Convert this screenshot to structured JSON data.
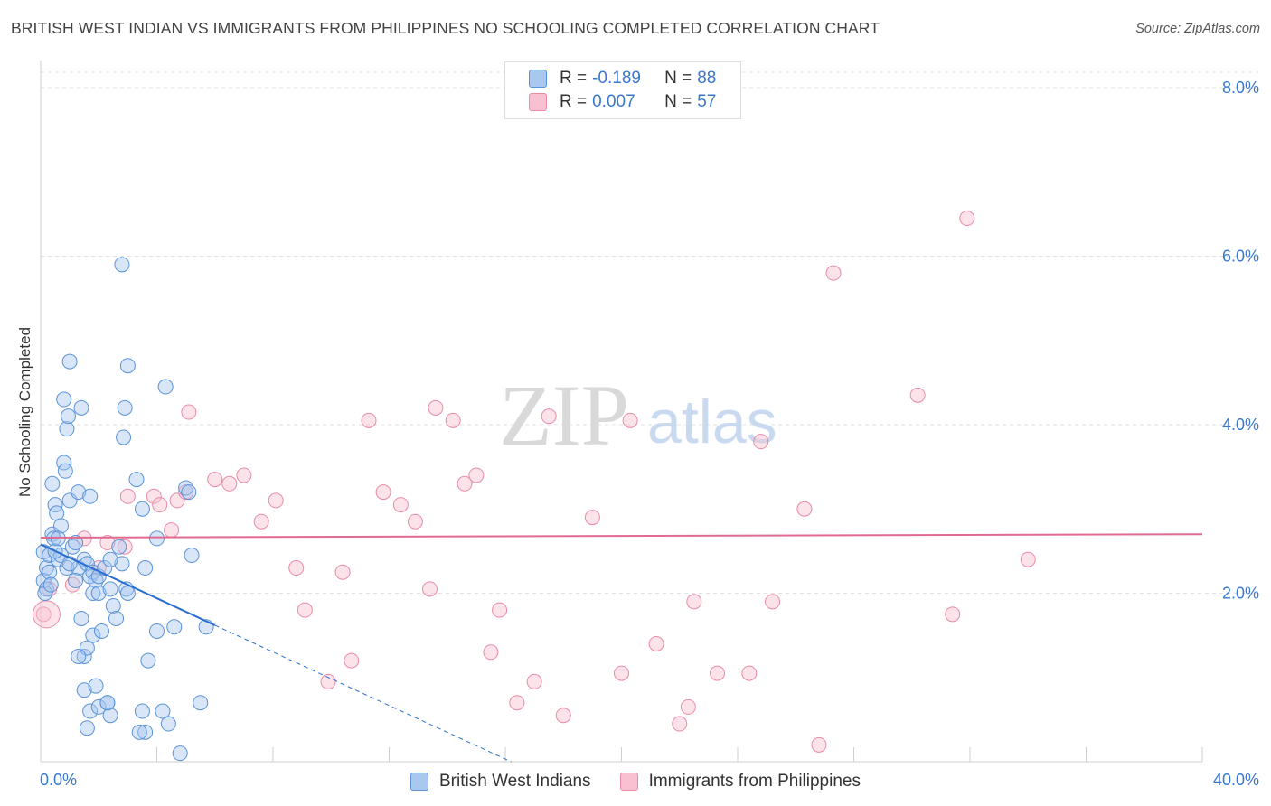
{
  "header": {
    "title": "BRITISH WEST INDIAN VS IMMIGRANTS FROM PHILIPPINES NO SCHOOLING COMPLETED CORRELATION CHART",
    "source": "Source: ZipAtlas.com"
  },
  "watermark": {
    "zip": "ZIP",
    "atlas": "atlas"
  },
  "legend": {
    "r_label": "R =",
    "n_label": "N =",
    "series": [
      {
        "name": "British West Indians",
        "r": "-0.189",
        "n": "88"
      },
      {
        "name": "Immigrants from Philippines",
        "r": "0.007",
        "n": "57"
      }
    ]
  },
  "colors": {
    "blue_fill": "#a8c8f0",
    "blue_stroke": "#5a93d8",
    "blue_line": "#2a6fd0",
    "pink_fill": "#f8c0d0",
    "pink_stroke": "#e98aa6",
    "pink_line": "#e06a92",
    "axis_text": "#3a78d0"
  },
  "chart_data": {
    "type": "scatter",
    "title": "BRITISH WEST INDIAN VS IMMIGRANTS FROM PHILIPPINES NO SCHOOLING COMPLETED CORRELATION CHART",
    "xlabel": "",
    "ylabel": "No Schooling Completed",
    "xlim": [
      0,
      40
    ],
    "ylim": [
      0,
      8.0
    ],
    "x_tick_labels": [
      "0.0%",
      "40.0%"
    ],
    "y_ticks": [
      2.0,
      4.0,
      6.0,
      8.0
    ],
    "y_tick_labels": [
      "2.0%",
      "4.0%",
      "6.0%",
      "8.0%"
    ],
    "grid": true,
    "legend_position": "top-center",
    "series": [
      {
        "name": "British West Indians",
        "trend": {
          "x0": 0,
          "y0": 2.58,
          "x1": 6.0,
          "y1": 1.62,
          "dashed_to_x": 16.2,
          "dashed_to_y": 0.0
        },
        "points": [
          [
            0.1,
            2.49
          ],
          [
            0.2,
            2.3
          ],
          [
            0.1,
            2.15
          ],
          [
            0.2,
            2.05
          ],
          [
            0.15,
            2.0
          ],
          [
            0.3,
            2.45
          ],
          [
            0.3,
            2.25
          ],
          [
            0.35,
            2.1
          ],
          [
            0.4,
            2.7
          ],
          [
            0.4,
            3.3
          ],
          [
            0.5,
            3.05
          ],
          [
            0.55,
            2.95
          ],
          [
            0.45,
            2.65
          ],
          [
            0.6,
            2.4
          ],
          [
            0.7,
            2.8
          ],
          [
            0.7,
            2.45
          ],
          [
            0.8,
            3.55
          ],
          [
            0.8,
            4.3
          ],
          [
            0.85,
            3.45
          ],
          [
            0.9,
            3.95
          ],
          [
            0.95,
            4.1
          ],
          [
            0.9,
            2.3
          ],
          [
            1.0,
            3.1
          ],
          [
            1.0,
            4.75
          ],
          [
            1.1,
            2.55
          ],
          [
            1.2,
            2.6
          ],
          [
            1.3,
            2.3
          ],
          [
            1.4,
            4.2
          ],
          [
            1.3,
            3.2
          ],
          [
            1.5,
            2.4
          ],
          [
            1.6,
            2.35
          ],
          [
            1.5,
            1.25
          ],
          [
            1.7,
            2.2
          ],
          [
            1.8,
            2.25
          ],
          [
            1.9,
            2.15
          ],
          [
            1.6,
            1.35
          ],
          [
            1.8,
            2.0
          ],
          [
            1.8,
            1.5
          ],
          [
            2.0,
            2.2
          ],
          [
            2.2,
            2.3
          ],
          [
            2.1,
            1.55
          ],
          [
            1.4,
            1.7
          ],
          [
            1.3,
            1.25
          ],
          [
            1.5,
            0.85
          ],
          [
            1.6,
            0.4
          ],
          [
            1.7,
            0.6
          ],
          [
            2.0,
            0.65
          ],
          [
            2.3,
            0.7
          ],
          [
            2.4,
            0.55
          ],
          [
            1.9,
            0.9
          ],
          [
            2.0,
            2.0
          ],
          [
            2.4,
            2.05
          ],
          [
            2.5,
            1.85
          ],
          [
            2.6,
            1.7
          ],
          [
            2.7,
            2.55
          ],
          [
            2.8,
            2.35
          ],
          [
            2.9,
            4.2
          ],
          [
            2.85,
            3.85
          ],
          [
            2.95,
            2.05
          ],
          [
            3.0,
            2.0
          ],
          [
            3.3,
            3.35
          ],
          [
            3.5,
            3.0
          ],
          [
            3.6,
            2.3
          ],
          [
            2.3,
            0.7
          ],
          [
            3.7,
            1.2
          ],
          [
            4.0,
            2.65
          ],
          [
            4.2,
            0.6
          ],
          [
            4.0,
            1.55
          ],
          [
            4.4,
            0.45
          ],
          [
            4.6,
            1.6
          ],
          [
            4.8,
            0.1
          ],
          [
            5.0,
            3.25
          ],
          [
            5.1,
            3.2
          ],
          [
            5.2,
            2.45
          ],
          [
            5.5,
            0.7
          ],
          [
            5.7,
            1.6
          ],
          [
            3.6,
            0.35
          ],
          [
            3.4,
            0.35
          ],
          [
            3.5,
            0.6
          ],
          [
            0.5,
            2.5
          ],
          [
            0.6,
            2.65
          ],
          [
            1.0,
            2.35
          ],
          [
            1.2,
            2.15
          ],
          [
            2.4,
            2.4
          ],
          [
            1.7,
            3.15
          ],
          [
            4.3,
            4.45
          ],
          [
            3.0,
            4.7
          ],
          [
            2.8,
            5.9
          ]
        ]
      },
      {
        "name": "Immigrants from Philippines",
        "trend": {
          "x0": 0,
          "y0": 2.66,
          "x1": 40,
          "y1": 2.7
        },
        "points": [
          [
            0.1,
            1.75
          ],
          [
            0.3,
            2.05
          ],
          [
            1.1,
            2.1
          ],
          [
            1.5,
            2.65
          ],
          [
            2.0,
            2.3
          ],
          [
            2.3,
            2.6
          ],
          [
            3.0,
            3.15
          ],
          [
            2.9,
            2.55
          ],
          [
            3.9,
            3.15
          ],
          [
            4.1,
            3.05
          ],
          [
            4.5,
            2.75
          ],
          [
            4.7,
            3.1
          ],
          [
            5.0,
            3.2
          ],
          [
            5.1,
            4.15
          ],
          [
            6.0,
            3.35
          ],
          [
            6.5,
            3.3
          ],
          [
            7.0,
            3.4
          ],
          [
            7.6,
            2.85
          ],
          [
            8.1,
            3.1
          ],
          [
            8.8,
            2.3
          ],
          [
            9.1,
            1.8
          ],
          [
            9.9,
            0.95
          ],
          [
            10.4,
            2.25
          ],
          [
            10.7,
            1.2
          ],
          [
            11.3,
            4.05
          ],
          [
            11.8,
            3.2
          ],
          [
            12.4,
            3.05
          ],
          [
            12.9,
            2.85
          ],
          [
            13.4,
            2.05
          ],
          [
            13.6,
            4.2
          ],
          [
            14.2,
            4.05
          ],
          [
            14.6,
            3.3
          ],
          [
            15.0,
            3.4
          ],
          [
            15.5,
            1.3
          ],
          [
            15.8,
            1.8
          ],
          [
            16.4,
            0.7
          ],
          [
            17.0,
            0.95
          ],
          [
            17.5,
            4.1
          ],
          [
            18.0,
            0.55
          ],
          [
            19.0,
            2.9
          ],
          [
            20.0,
            1.05
          ],
          [
            20.3,
            4.05
          ],
          [
            21.2,
            1.4
          ],
          [
            22.0,
            0.45
          ],
          [
            22.3,
            0.65
          ],
          [
            22.5,
            1.9
          ],
          [
            23.3,
            1.05
          ],
          [
            24.4,
            1.05
          ],
          [
            24.8,
            3.8
          ],
          [
            25.2,
            1.9
          ],
          [
            26.3,
            3.0
          ],
          [
            26.8,
            0.2
          ],
          [
            27.3,
            5.8
          ],
          [
            30.2,
            4.35
          ],
          [
            31.4,
            1.75
          ],
          [
            31.9,
            6.45
          ],
          [
            34.0,
            2.4
          ]
        ]
      }
    ]
  }
}
